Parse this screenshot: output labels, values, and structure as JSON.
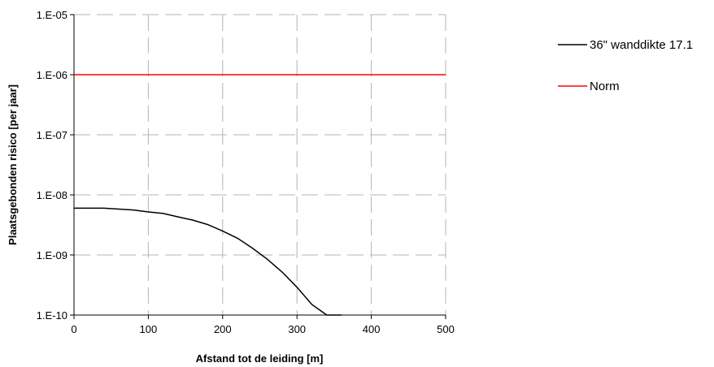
{
  "chart_data": {
    "type": "line",
    "title": "",
    "xlabel": "Afstand tot de leiding [m]",
    "ylabel": "Plaatsgebonden risico [per jaar]",
    "xlim": [
      0,
      500
    ],
    "ylim": [
      1e-10,
      1e-05
    ],
    "y_scale": "log",
    "grid": "dashed gray",
    "x_ticks": [
      0,
      100,
      200,
      300,
      400,
      500
    ],
    "x_tick_labels": [
      "0",
      "100",
      "200",
      "300",
      "400",
      "500"
    ],
    "y_ticks": [
      1e-05,
      1e-06,
      1e-07,
      1e-08,
      1e-09,
      1e-10
    ],
    "y_tick_labels": [
      "1.E-05",
      "1.E-06",
      "1.E-07",
      "1.E-08",
      "1.E-09",
      "1.E-10"
    ],
    "legend_position": "right",
    "series": [
      {
        "name": "36\" wanddikte 17.1",
        "color": "#000000",
        "x": [
          0,
          40,
          60,
          80,
          100,
          120,
          140,
          160,
          180,
          200,
          220,
          240,
          260,
          280,
          300,
          320,
          340,
          360
        ],
        "y": [
          6e-09,
          6e-09,
          5.8e-09,
          5.6e-09,
          5.2e-09,
          4.9e-09,
          4.3e-09,
          3.8e-09,
          3.2e-09,
          2.5e-09,
          1.9e-09,
          1.3e-09,
          8.5e-10,
          5.2e-10,
          2.9e-10,
          1.5e-10,
          1e-10,
          1e-10
        ]
      },
      {
        "name": "Norm",
        "color": "#ff0000",
        "x": [
          0,
          500
        ],
        "y": [
          1e-06,
          1e-06
        ]
      }
    ]
  }
}
